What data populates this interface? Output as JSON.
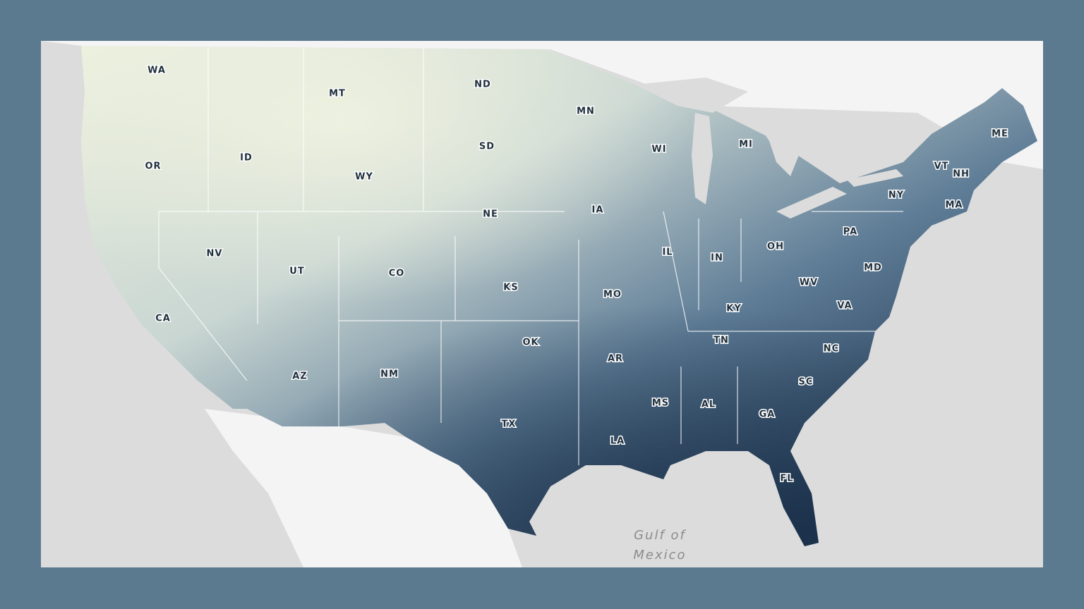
{
  "state_labels": [
    "WA",
    "MT",
    "ND",
    "MN",
    "ME",
    "OR",
    "ID",
    "WY",
    "SD",
    "WI",
    "MI",
    "VT",
    "NH",
    "NY",
    "MA",
    "NE",
    "IA",
    "PA",
    "NV",
    "UT",
    "CO",
    "IL",
    "IN",
    "OH",
    "MD",
    "KS",
    "MO",
    "WV",
    "VA",
    "KY",
    "CA",
    "OK",
    "AR",
    "TN",
    "NC",
    "AZ",
    "NM",
    "SC",
    "MS",
    "AL",
    "GA",
    "TX",
    "LA",
    "FL"
  ],
  "water_label": [
    "Gulf of",
    "Mexico"
  ]
}
